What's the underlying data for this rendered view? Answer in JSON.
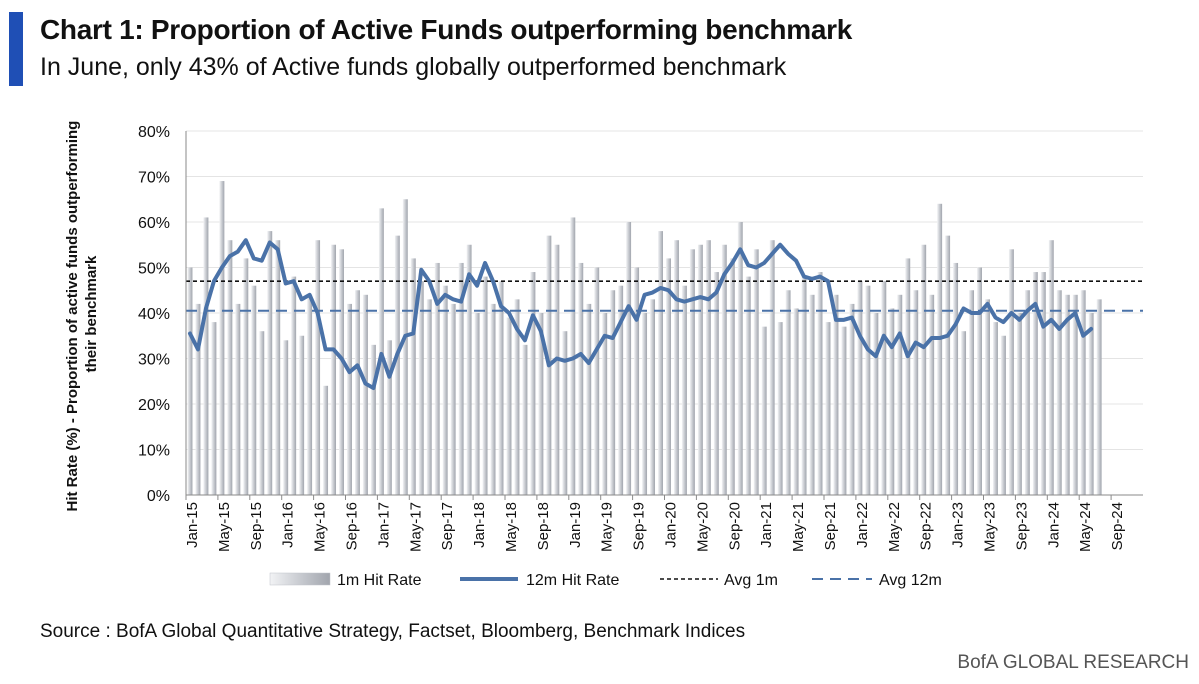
{
  "header": {
    "title": "Chart 1: Proportion of Active Funds outperforming benchmark",
    "subtitle": "In June, only 43% of Active funds globally outperformed benchmark"
  },
  "footer": {
    "source": "Source : BofA Global Quantitative Strategy, Factset, Bloomberg, Benchmark Indices",
    "brand": "BofA GLOBAL RESEARCH"
  },
  "colors": {
    "bar": "#b9bcc3",
    "line12m": "#4a72a8",
    "avg1m": "#111111",
    "avg12m": "#4a72a8"
  },
  "chart_data": {
    "type": "bar",
    "ylabel": "Hit Rate (%) - Proportion of active funds outperforming their benchmark",
    "ylim": [
      0,
      80
    ],
    "ytick_labels": [
      "0%",
      "10%",
      "20%",
      "30%",
      "40%",
      "50%",
      "60%",
      "70%",
      "80%"
    ],
    "xtick_labels": [
      "Jan-15",
      "May-15",
      "Sep-15",
      "Jan-16",
      "May-16",
      "Sep-16",
      "Jan-17",
      "May-17",
      "Sep-17",
      "Jan-18",
      "May-18",
      "Sep-18",
      "Jan-19",
      "May-19",
      "Sep-19",
      "Jan-20",
      "May-20",
      "Sep-20",
      "Jan-21",
      "May-21",
      "Sep-21",
      "Jan-22",
      "May-22",
      "Sep-22",
      "Jan-23",
      "May-23",
      "Sep-23",
      "Jan-24",
      "May-24",
      "Sep-24"
    ],
    "x_count": 120,
    "averages": {
      "avg_1m": 47,
      "avg_12m": 40.5
    },
    "series": [
      {
        "name": "1m Hit Rate",
        "type": "bar",
        "values": [
          50,
          42,
          61,
          38,
          69,
          56,
          42,
          52,
          46,
          36,
          58,
          56,
          34,
          48,
          35,
          44,
          56,
          24,
          55,
          54,
          42,
          45,
          44,
          33,
          63,
          34,
          57,
          65,
          52,
          47,
          43,
          51,
          46,
          42,
          51,
          55,
          40,
          48,
          42,
          47,
          39,
          43,
          33,
          49,
          40,
          57,
          55,
          36,
          61,
          51,
          42,
          50,
          40,
          45,
          46,
          60,
          50,
          40,
          43,
          58,
          52,
          56,
          46,
          54,
          55,
          56,
          49,
          55,
          52,
          60,
          48,
          54,
          37,
          56,
          38,
          45,
          41,
          48,
          44,
          49,
          38,
          44,
          37,
          42,
          47,
          46,
          40,
          47,
          41,
          44,
          52,
          45,
          55,
          44,
          64,
          57,
          51,
          36,
          45,
          50,
          43,
          38,
          35,
          54,
          40,
          45,
          49,
          49,
          56,
          45,
          44,
          44,
          45,
          40,
          43,
          null,
          null,
          null,
          null,
          null
        ]
      },
      {
        "name": "12m Hit Rate",
        "type": "line",
        "values": [
          35.5,
          32,
          41,
          47,
          50,
          52.5,
          53.5,
          56,
          52,
          51.5,
          55.5,
          54,
          46.5,
          47,
          43,
          44,
          40,
          32,
          32,
          30,
          27,
          28.5,
          24.5,
          23.5,
          31,
          26,
          31,
          35,
          35.5,
          49.5,
          47,
          42,
          44,
          43,
          42.5,
          48.5,
          46,
          51,
          47,
          41.5,
          40,
          36.5,
          34,
          39.5,
          36,
          28.5,
          30,
          29.5,
          30,
          31,
          29,
          32,
          35,
          34.5,
          38,
          41.5,
          38.5,
          44,
          44.5,
          45.5,
          45,
          43,
          42.5,
          43,
          43.5,
          43,
          44.5,
          48.5,
          51,
          54,
          50.5,
          50,
          51,
          53,
          55,
          53,
          51.5,
          48,
          47.5,
          48,
          47,
          38.5,
          38.5,
          39,
          35,
          32,
          30.5,
          35,
          32.5,
          35.5,
          30.5,
          33.5,
          32.5,
          34.5,
          34.5,
          35,
          37.5,
          41,
          40,
          40,
          42,
          39,
          38,
          40,
          38.5,
          40.5,
          42,
          37,
          38.5,
          36.5,
          38.5,
          40,
          35,
          36.5,
          null,
          null,
          null,
          null,
          null,
          null
        ]
      },
      {
        "name": "Avg 1m",
        "type": "hline",
        "value": 47
      },
      {
        "name": "Avg 12m",
        "type": "hline",
        "value": 40.5
      }
    ],
    "legend": [
      "1m Hit Rate",
      "12m Hit Rate",
      "Avg 1m",
      "Avg 12m"
    ],
    "legend_position": "bottom"
  }
}
